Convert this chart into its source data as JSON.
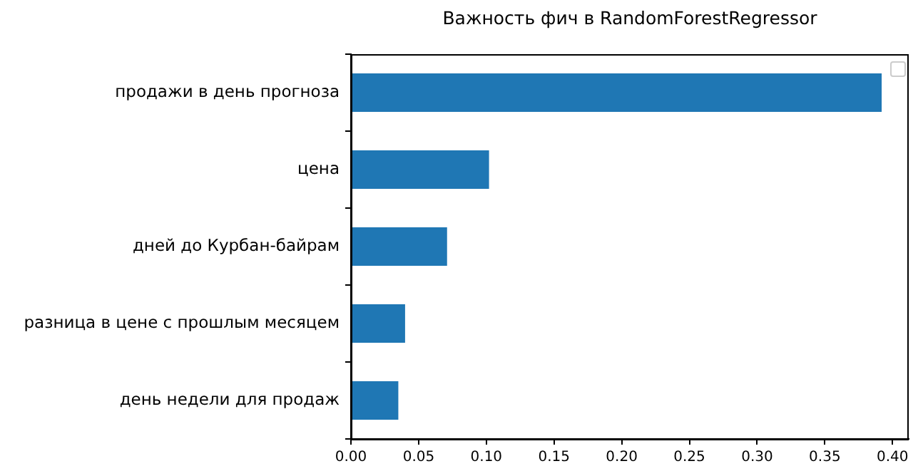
{
  "chart_data": {
    "type": "bar",
    "orientation": "horizontal",
    "title": "Важность фич в RandomForestRegressor",
    "categories": [
      "продажи в день прогноза",
      "цена",
      "дней до Курбан-байрам",
      "разница в цене с прошлым месяцем",
      "день недели для продаж"
    ],
    "values": [
      0.392,
      0.102,
      0.071,
      0.04,
      0.035
    ],
    "color": "#1f77b4",
    "xlim": [
      0,
      0.412
    ],
    "xticks": [
      {
        "value": 0,
        "label": "0.00"
      },
      {
        "value": 0.05,
        "label": "0.05"
      },
      {
        "value": 0.1,
        "label": "0.10"
      },
      {
        "value": 0.15,
        "label": "0.15"
      },
      {
        "value": 0.2,
        "label": "0.20"
      },
      {
        "value": 0.25,
        "label": "0.25"
      },
      {
        "value": 0.3,
        "label": "0.30"
      },
      {
        "value": 0.35,
        "label": "0.35"
      },
      {
        "value": 0.4,
        "label": "0.40"
      }
    ],
    "grid": false
  }
}
